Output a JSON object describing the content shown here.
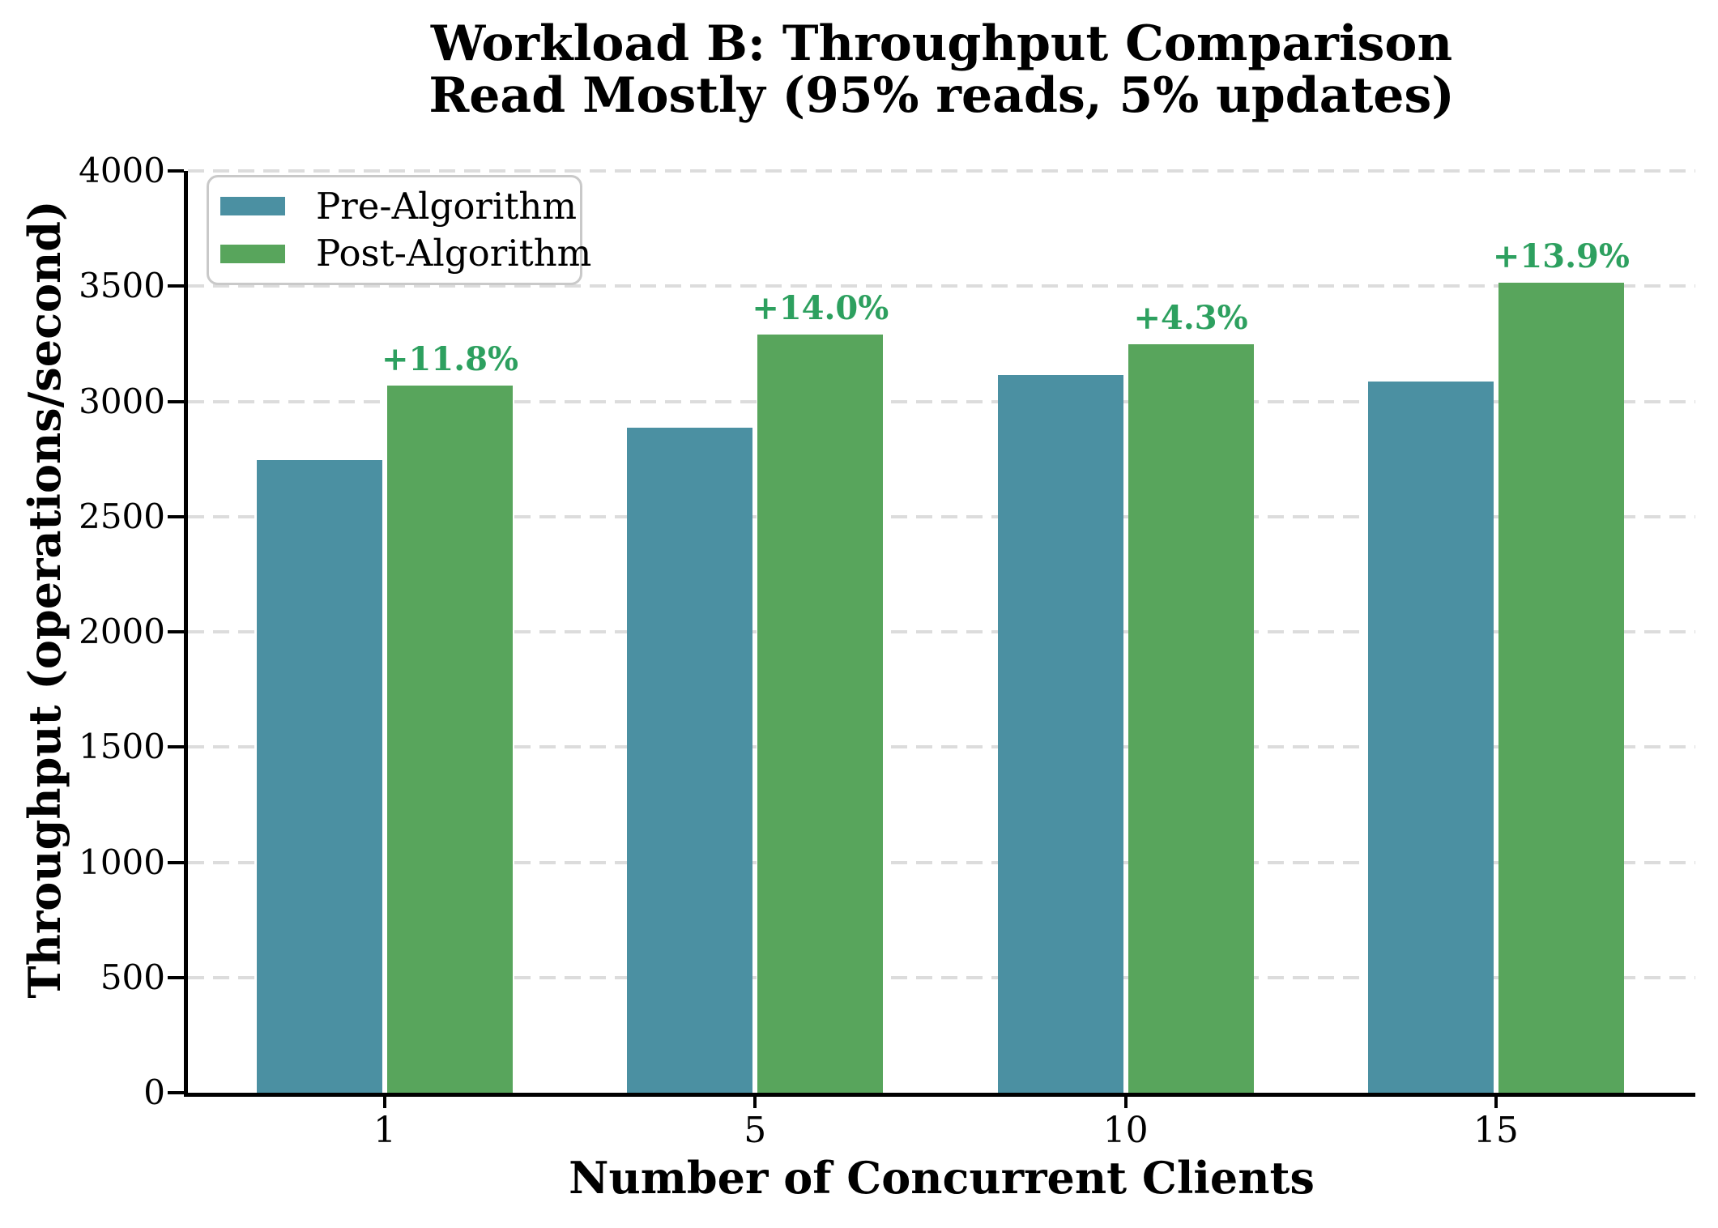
{
  "title": {
    "line1": "Workload B: Throughput Comparison",
    "line2": "Read Mostly (95% reads, 5% updates)"
  },
  "chart_data": {
    "type": "bar",
    "title": "Workload B: Throughput Comparison — Read Mostly (95% reads, 5% updates)",
    "xlabel": "Number of Concurrent Clients",
    "ylabel": "Throughput (operations/second)",
    "categories": [
      "1",
      "5",
      "10",
      "15"
    ],
    "series": [
      {
        "name": "Pre-Algorithm",
        "color": "#4b90a2",
        "values": [
          2745,
          2885,
          3115,
          3085
        ]
      },
      {
        "name": "Post-Algorithm",
        "color": "#58a55c",
        "values": [
          3069,
          3289,
          3249,
          3514
        ]
      }
    ],
    "annotations": {
      "color": "#2da05f",
      "labels": [
        "+11.8%",
        "+14.0%",
        "+4.3%",
        "+13.9%"
      ],
      "applies_to_series": "Post-Algorithm"
    },
    "ylim": [
      0,
      4000
    ],
    "yticks": [
      0,
      500,
      1000,
      1500,
      2000,
      2500,
      3000,
      3500,
      4000
    ],
    "grid": {
      "axis": "y",
      "style": "dashed",
      "color": "#dcdcdc"
    },
    "legend": {
      "position": "upper left",
      "entries": [
        "Pre-Algorithm",
        "Post-Algorithm"
      ]
    }
  }
}
